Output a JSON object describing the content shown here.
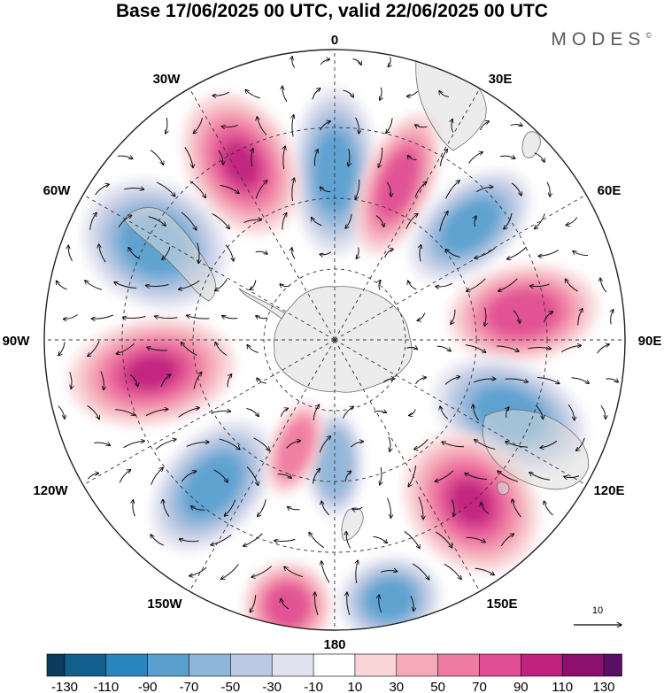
{
  "title": "Base 17/06/2025 00 UTC, valid 22/06/2025 00 UTC",
  "brand": "MODES",
  "brand_mark": "©",
  "longitude_labels": {
    "lon_0": "0",
    "lon_30e": "30E",
    "lon_60e": "60E",
    "lon_90e": "90E",
    "lon_120e": "120E",
    "lon_150e": "150E",
    "lon_180": "180",
    "lon_150w": "150W",
    "lon_120w": "120W",
    "lon_90w": "90W",
    "lon_60w": "60W",
    "lon_30w": "30W"
  },
  "reference_vector_label": "10",
  "colorbar": {
    "ticks": [
      "-130",
      "-110",
      "-90",
      "-70",
      "-50",
      "-30",
      "-10",
      "10",
      "30",
      "50",
      "70",
      "90",
      "110",
      "130"
    ],
    "colors": [
      "#0b3b5c",
      "#13608f",
      "#2a84bd",
      "#5aa0cf",
      "#8fb5da",
      "#bdc8e2",
      "#e1e2f0",
      "#ffffff",
      "#f9d5d8",
      "#f5aab8",
      "#ef7ba2",
      "#e04f93",
      "#c0237f",
      "#8d0f70",
      "#5b0e66"
    ]
  },
  "chart_data": {
    "type": "map",
    "projection": "south-polar-stereographic",
    "field": "anomaly (shaded) with wind vectors",
    "anomaly_centers": [
      {
        "lon": "0",
        "sign": "negative",
        "peak": -70
      },
      {
        "lon": "25W",
        "sign": "positive",
        "peak": 90
      },
      {
        "lon": "60W",
        "sign": "negative",
        "peak": -70
      },
      {
        "lon": "20E",
        "sign": "positive",
        "peak": 70
      },
      {
        "lon": "45E",
        "sign": "negative",
        "peak": -70
      },
      {
        "lon": "80E",
        "sign": "positive",
        "peak": 70
      },
      {
        "lon": "110E",
        "sign": "negative",
        "peak": -70
      },
      {
        "lon": "145E",
        "sign": "positive",
        "peak": 90
      },
      {
        "lon": "165E",
        "sign": "negative",
        "peak": -70
      },
      {
        "lon": "160W",
        "sign": "positive",
        "peak": 70
      },
      {
        "lon": "135W",
        "sign": "negative",
        "peak": -70
      },
      {
        "lon": "100W",
        "sign": "positive",
        "peak": 90
      },
      {
        "lon": "180",
        "sign": "negative",
        "peak": -50
      },
      {
        "lon": "155W",
        "sign": "positive",
        "peak": 50
      }
    ],
    "color_scale_range": [
      -130,
      130
    ],
    "grid": true
  }
}
